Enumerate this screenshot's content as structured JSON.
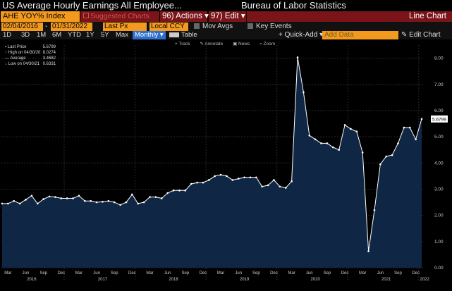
{
  "header": {
    "title_left": "US Average Hourly Earnings All Employee...",
    "title_right": "Bureau of Labor Statistics"
  },
  "command": {
    "ticker": "AHE YOY% Index",
    "suggested": "Suggested Charts",
    "actions": "96) Actions ▾",
    "edit": "97) Edit ▾",
    "line_chart": "Line Chart"
  },
  "dates": {
    "start": "02/04/2016",
    "end": "01/31/2022",
    "field": "Last Px",
    "currency": "Local CCY",
    "mov_avgs": "Mov Avgs",
    "key_events": "Key Events"
  },
  "periods": {
    "items": [
      "1D",
      "3D",
      "1M",
      "6M",
      "YTD",
      "1Y",
      "5Y",
      "Max"
    ],
    "selected": "Monthly ▾",
    "table": "Table",
    "quick_add": "+ Quick-Add ▾",
    "add_data_placeholder": "Add Data",
    "edit_chart": "✎ Edit Chart"
  },
  "tools": [
    "Track",
    "Annotate",
    "News",
    "Zoom"
  ],
  "legend": {
    "last_price_label": "Last Price",
    "last_price": "5.6799",
    "high_label": "High on 04/30/20",
    "high": "8.0274",
    "average_label": "Average",
    "average": "3.4682",
    "low_label": "Low on 04/30/21",
    "low": "0.6331"
  },
  "colors": {
    "accent_orange": "#f39a1e",
    "header_red": "#7a1418",
    "selected_blue": "#2d6fd0",
    "area_fill": "#0f2744",
    "line": "#ffffff"
  },
  "chart_data": {
    "type": "area",
    "x": [
      "2016-02",
      "2016-03",
      "2016-04",
      "2016-05",
      "2016-06",
      "2016-07",
      "2016-08",
      "2016-09",
      "2016-10",
      "2016-11",
      "2016-12",
      "2017-01",
      "2017-02",
      "2017-03",
      "2017-04",
      "2017-05",
      "2017-06",
      "2017-07",
      "2017-08",
      "2017-09",
      "2017-10",
      "2017-11",
      "2017-12",
      "2018-01",
      "2018-02",
      "2018-03",
      "2018-04",
      "2018-05",
      "2018-06",
      "2018-07",
      "2018-08",
      "2018-09",
      "2018-10",
      "2018-11",
      "2018-12",
      "2019-01",
      "2019-02",
      "2019-03",
      "2019-04",
      "2019-05",
      "2019-06",
      "2019-07",
      "2019-08",
      "2019-09",
      "2019-10",
      "2019-11",
      "2019-12",
      "2020-01",
      "2020-02",
      "2020-03",
      "2020-04",
      "2020-05",
      "2020-06",
      "2020-07",
      "2020-08",
      "2020-09",
      "2020-10",
      "2020-11",
      "2020-12",
      "2021-01",
      "2021-02",
      "2021-03",
      "2021-04",
      "2021-05",
      "2021-06",
      "2021-07",
      "2021-08",
      "2021-09",
      "2021-10",
      "2021-11",
      "2021-12",
      "2022-01"
    ],
    "values": [
      2.45,
      2.45,
      2.55,
      2.45,
      2.6,
      2.75,
      2.45,
      2.62,
      2.72,
      2.7,
      2.65,
      2.65,
      2.65,
      2.75,
      2.55,
      2.55,
      2.5,
      2.52,
      2.55,
      2.5,
      2.4,
      2.5,
      2.8,
      2.45,
      2.5,
      2.7,
      2.7,
      2.65,
      2.85,
      2.95,
      2.95,
      2.95,
      3.2,
      3.25,
      3.25,
      3.35,
      3.5,
      3.55,
      3.5,
      3.35,
      3.4,
      3.45,
      3.45,
      3.45,
      3.1,
      3.15,
      3.35,
      3.1,
      3.05,
      3.3,
      8.03,
      6.7,
      5.05,
      4.9,
      4.75,
      4.75,
      4.6,
      4.5,
      5.45,
      5.3,
      5.2,
      4.4,
      0.63,
      2.2,
      3.95,
      4.25,
      4.3,
      4.75,
      5.35,
      5.35,
      4.9,
      5.68
    ],
    "ylim": [
      0,
      8.5
    ],
    "y_ticks": [
      "0.00",
      "1.00",
      "2.00",
      "3.00",
      "4.00",
      "5.00",
      "6.00",
      "7.00",
      "8.00"
    ],
    "x_month_ticks": [
      "Mar",
      "Jun",
      "Sep",
      "Dec",
      "Mar",
      "Jun",
      "Sep",
      "Dec",
      "Mar",
      "Jun",
      "Sep",
      "Dec",
      "Mar",
      "Jun",
      "Sep",
      "Dec",
      "Mar",
      "Jun",
      "Sep",
      "Dec",
      "Mar",
      "Jun",
      "Sep",
      "Dec"
    ],
    "x_year_ticks": [
      "2016",
      "2017",
      "2018",
      "2019",
      "2020",
      "2021",
      "2022"
    ],
    "last_value_label": "5.6799",
    "grid": true
  }
}
